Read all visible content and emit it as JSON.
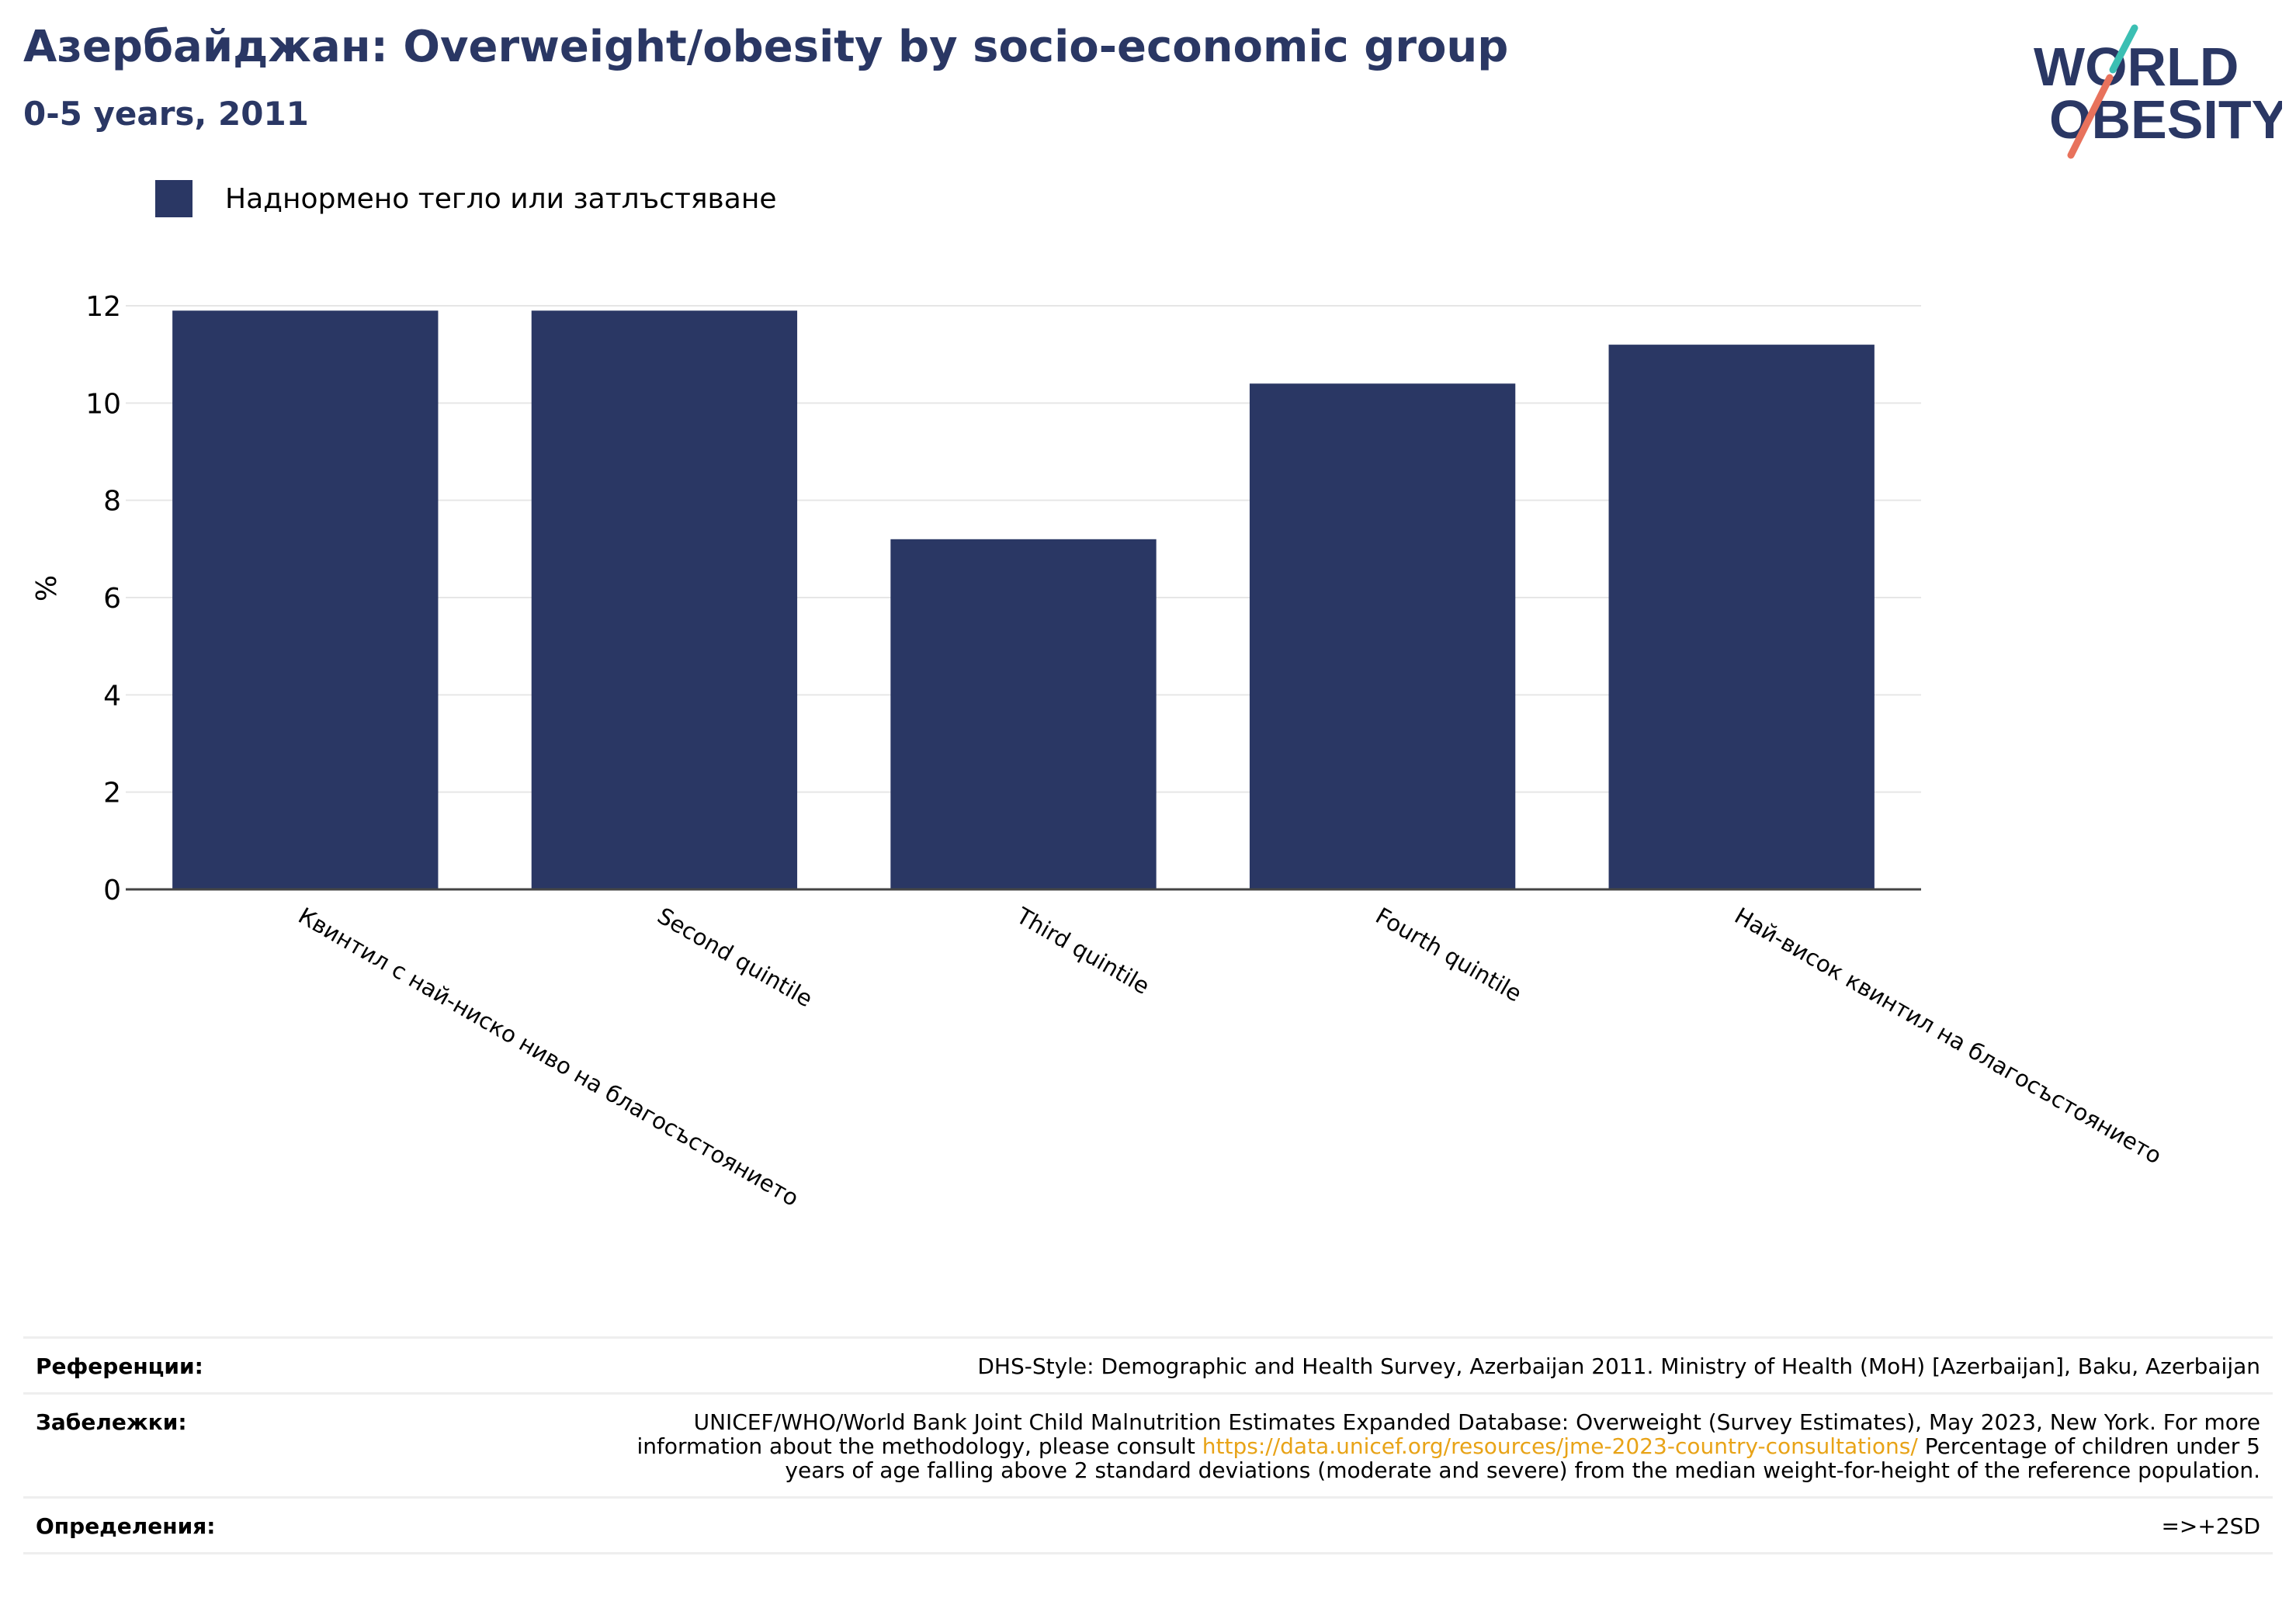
{
  "header": {
    "title": "Азербайджан: Overweight/obesity by socio-economic group",
    "subtitle": "0-5 years, 2011",
    "logo": {
      "line1": "WORLD",
      "line2": "OBESITY"
    }
  },
  "legend": {
    "label": "Наднормено тегло или затлъстяване"
  },
  "colors": {
    "bar": "#2a3764",
    "title": "#2a3764",
    "link": "#e8a317",
    "grid": "#e6e6e6",
    "axis": "#444444"
  },
  "chart_data": {
    "type": "bar",
    "title": "",
    "xlabel": "",
    "ylabel": "%",
    "ylim": [
      0,
      12
    ],
    "yticks": [
      "0",
      "2",
      "4",
      "6",
      "8",
      "10",
      "12"
    ],
    "grid": true,
    "legend_position": "top-left",
    "categories": [
      "Квинтил с най-ниско ниво на благосъстоянието",
      "Second quintile",
      "Third quintile",
      "Fourth quintile",
      "Най-висок квинтил на благосъстоянието"
    ],
    "series": [
      {
        "name": "Наднормено тегло или затлъстяване",
        "values": [
          11.9,
          11.9,
          7.2,
          10.4,
          11.2
        ]
      }
    ]
  },
  "references": {
    "refs_label": "Референции:",
    "refs_value": "DHS-Style: Demographic and Health Survey, Azerbaijan 2011. Ministry of Health (MoH) [Azerbaijan], Baku, Azerbaijan",
    "notes_label": "Забележки:",
    "notes_text_1": "UNICEF/WHO/World Bank Joint Child Malnutrition Estimates Expanded Database: Overweight (Survey Estimates), May 2023, New York. For more information about the methodology, please consult ",
    "notes_link": "https://data.unicef.org/resources/jme-2023-country-consultations/",
    "notes_text_2": " Percentage of children under 5 years of age falling above 2 standard deviations (moderate and severe) from the median weight-for-height of the reference population.",
    "defs_label": "Определения:",
    "defs_value": "=>+2SD"
  }
}
